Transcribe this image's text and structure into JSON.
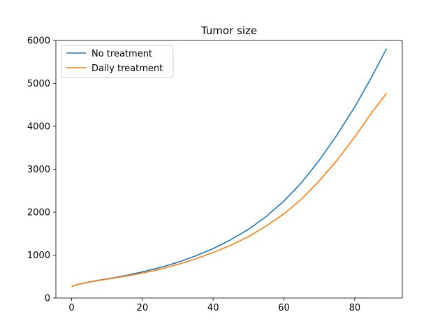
{
  "chart_data": {
    "type": "line",
    "title": "Tumor size",
    "xlabel": "",
    "ylabel": "",
    "xlim": [
      -4.45,
      93.45
    ],
    "ylim": [
      0,
      6000
    ],
    "xticks": [
      0,
      20,
      40,
      60,
      80
    ],
    "yticks": [
      0,
      1000,
      2000,
      3000,
      4000,
      5000,
      6000
    ],
    "grid": false,
    "legend_position": "top-left",
    "series": [
      {
        "name": "No treatment",
        "color": "#1f77b4",
        "x": [
          0,
          1,
          2,
          3,
          5,
          7,
          10,
          15,
          20,
          25,
          30,
          35,
          40,
          45,
          50,
          55,
          60,
          65,
          70,
          75,
          80,
          85,
          89
        ],
        "y": [
          265,
          295,
          320,
          340,
          375,
          405,
          445,
          520,
          610,
          710,
          830,
          980,
          1150,
          1360,
          1600,
          1900,
          2260,
          2690,
          3210,
          3800,
          4450,
          5180,
          5810
        ]
      },
      {
        "name": "Daily treatment",
        "color": "#ff7f0e",
        "x": [
          0,
          1,
          2,
          3,
          5,
          7,
          10,
          15,
          20,
          25,
          30,
          35,
          40,
          45,
          50,
          55,
          60,
          65,
          70,
          75,
          80,
          85,
          89
        ],
        "y": [
          265,
          295,
          320,
          338,
          370,
          400,
          438,
          505,
          580,
          670,
          780,
          910,
          1060,
          1230,
          1430,
          1680,
          1960,
          2310,
          2730,
          3210,
          3750,
          4340,
          4770
        ]
      }
    ]
  }
}
